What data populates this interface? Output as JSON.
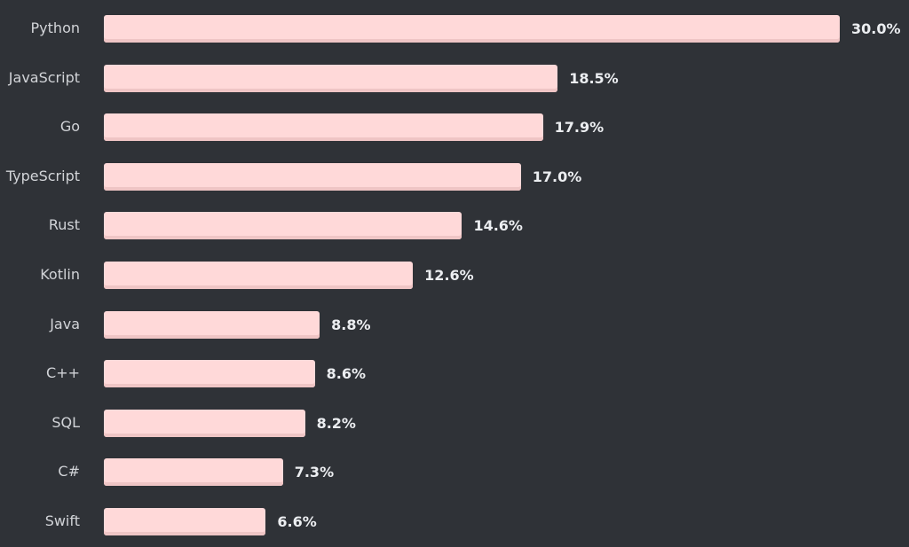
{
  "chart_data": {
    "type": "bar",
    "orientation": "horizontal",
    "categories": [
      "Python",
      "JavaScript",
      "Go",
      "TypeScript",
      "Rust",
      "Kotlin",
      "Java",
      "C++",
      "SQL",
      "C#",
      "Swift"
    ],
    "values": [
      30.0,
      18.5,
      17.9,
      17.0,
      14.6,
      12.6,
      8.8,
      8.6,
      8.2,
      7.3,
      6.6
    ],
    "value_labels": [
      "30.0%",
      "18.5%",
      "17.9%",
      "17.0%",
      "14.6%",
      "12.6%",
      "8.8%",
      "8.6%",
      "8.2%",
      "7.3%",
      "6.6%"
    ],
    "title": "",
    "xlabel": "",
    "ylabel": "",
    "xlim": [
      0,
      30
    ],
    "grid": false,
    "colors": {
      "bar": "#ffd9d9",
      "bar_edge": "#efc5c5",
      "background": "#2f3237",
      "label": "#d2d4d8",
      "value": "#eceef1"
    }
  }
}
